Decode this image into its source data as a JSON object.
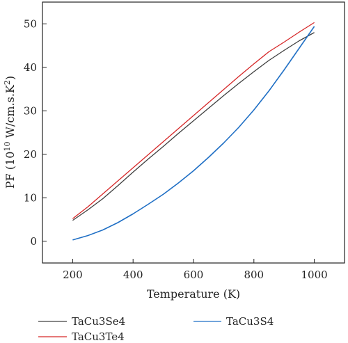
{
  "chart_data": {
    "type": "line",
    "xlabel": "Temperature (K)",
    "ylabel_parts": {
      "base": "PF (10",
      "sup1": "10",
      "mid": " W/cm.s.K",
      "sup2": "2",
      "end": ")"
    },
    "xlim": [
      100,
      1100
    ],
    "ylim": [
      -5,
      55
    ],
    "x_ticks": [
      200,
      400,
      600,
      800,
      1000
    ],
    "y_ticks": [
      0,
      10,
      20,
      30,
      40,
      50
    ],
    "grid": false,
    "legend_position": "bottom",
    "series": [
      {
        "name": "TaCu3Se4",
        "color": "#404040",
        "x": [
          200,
          250,
          300,
          350,
          400,
          450,
          500,
          550,
          600,
          650,
          700,
          750,
          800,
          850,
          900,
          950,
          1000
        ],
        "y": [
          4.8,
          7.2,
          9.8,
          12.8,
          15.9,
          18.9,
          21.8,
          24.8,
          27.7,
          30.6,
          33.5,
          36.3,
          39.0,
          41.6,
          43.9,
          46.1,
          48.0
        ]
      },
      {
        "name": "TaCu3Te4",
        "color": "#d62728",
        "x": [
          200,
          250,
          300,
          350,
          400,
          450,
          500,
          550,
          600,
          650,
          700,
          750,
          800,
          850,
          900,
          950,
          1000
        ],
        "y": [
          5.2,
          7.9,
          10.9,
          13.9,
          16.9,
          19.9,
          22.9,
          25.9,
          28.9,
          31.9,
          34.9,
          37.9,
          40.8,
          43.6,
          45.8,
          48.1,
          50.3
        ]
      },
      {
        "name": "TaCu3S4",
        "color": "#1f6fc5",
        "x": [
          200,
          250,
          300,
          350,
          400,
          450,
          500,
          550,
          600,
          650,
          700,
          750,
          800,
          850,
          900,
          950,
          975,
          1000
        ],
        "y": [
          0.3,
          1.3,
          2.6,
          4.3,
          6.3,
          8.5,
          10.8,
          13.4,
          16.2,
          19.3,
          22.6,
          26.2,
          30.2,
          34.6,
          39.4,
          44.4,
          46.9,
          49.4
        ]
      }
    ]
  }
}
